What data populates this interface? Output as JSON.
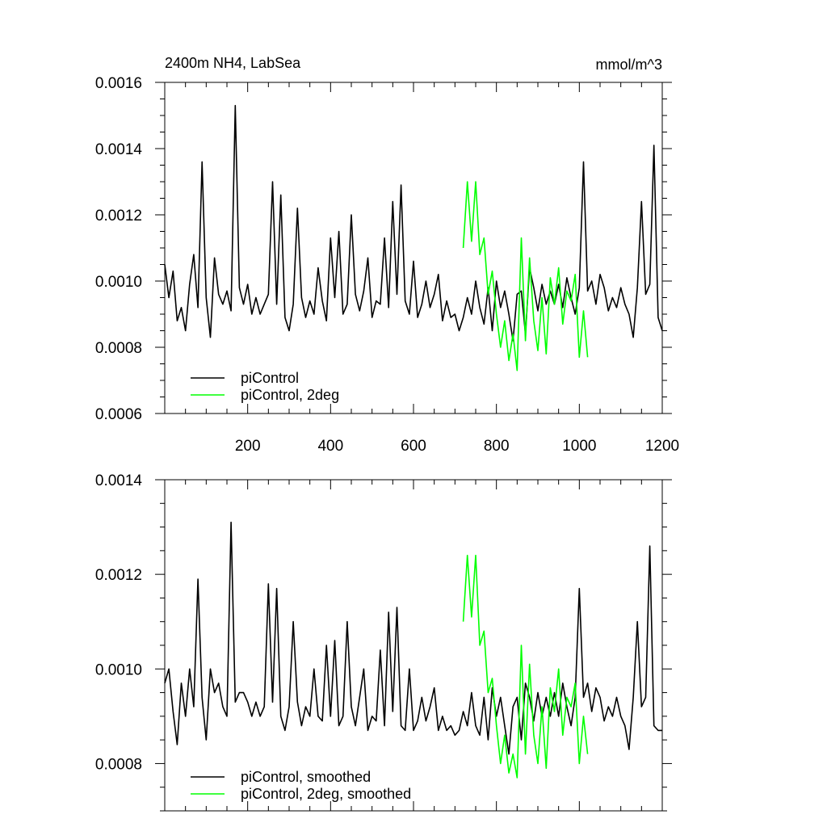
{
  "figure": {
    "title_left": "2400m NH4, LabSea",
    "title_right": "mmol/m^3"
  },
  "colors": {
    "series_black": "#000000",
    "series_green": "#00ff00"
  },
  "chart_data": [
    {
      "type": "line",
      "title": "2400m NH4, LabSea",
      "units": "mmol/m^3",
      "xlim": [
        0,
        1200
      ],
      "ylim": [
        0.0006,
        0.0016
      ],
      "x_ticks": [
        200,
        400,
        600,
        800,
        1000,
        1200
      ],
      "y_ticks": [
        "0.0006",
        "0.0008",
        "0.0010",
        "0.0012",
        "0.0014",
        "0.0016"
      ],
      "legend_position": "bottom-left",
      "grid": false,
      "series": [
        {
          "name": "piControl",
          "color": "#000000",
          "x": [
            0,
            10,
            20,
            30,
            40,
            50,
            60,
            70,
            80,
            90,
            100,
            110,
            120,
            130,
            140,
            150,
            160,
            170,
            180,
            190,
            200,
            210,
            220,
            230,
            240,
            250,
            260,
            270,
            280,
            290,
            300,
            310,
            320,
            330,
            340,
            350,
            360,
            370,
            380,
            390,
            400,
            410,
            420,
            430,
            440,
            450,
            460,
            470,
            480,
            490,
            500,
            510,
            520,
            530,
            540,
            550,
            560,
            570,
            580,
            590,
            600,
            610,
            620,
            630,
            640,
            650,
            660,
            670,
            680,
            690,
            700,
            710,
            720,
            730,
            740,
            750,
            760,
            770,
            780,
            790,
            800,
            810,
            820,
            830,
            840,
            850,
            860,
            870,
            880,
            890,
            900,
            910,
            920,
            930,
            940,
            950,
            960,
            970,
            980,
            990,
            1000,
            1010,
            1020,
            1030,
            1040,
            1050,
            1060,
            1070,
            1080,
            1090,
            1100,
            1110,
            1120,
            1130,
            1140,
            1150,
            1160,
            1170,
            1180,
            1190,
            1200
          ],
          "values": [
            0.00105,
            0.00095,
            0.00103,
            0.00088,
            0.00092,
            0.00085,
            0.00099,
            0.00108,
            0.00092,
            0.00136,
            0.00095,
            0.00083,
            0.00107,
            0.00096,
            0.00093,
            0.00097,
            0.00091,
            0.00153,
            0.00098,
            0.00093,
            0.00099,
            0.0009,
            0.00095,
            0.0009,
            0.00093,
            0.00096,
            0.0013,
            0.00093,
            0.00126,
            0.00089,
            0.00085,
            0.00093,
            0.00122,
            0.00095,
            0.00089,
            0.00094,
            0.0009,
            0.00104,
            0.00094,
            0.00088,
            0.00113,
            0.00095,
            0.00115,
            0.0009,
            0.00093,
            0.0012,
            0.00096,
            0.00091,
            0.00097,
            0.00107,
            0.00089,
            0.00094,
            0.00093,
            0.00113,
            0.00092,
            0.00124,
            0.00096,
            0.00129,
            0.00094,
            0.0009,
            0.00106,
            0.00089,
            0.00093,
            0.001,
            0.00092,
            0.00096,
            0.00102,
            0.00088,
            0.00094,
            0.00089,
            0.0009,
            0.00085,
            0.00089,
            0.00095,
            0.0009,
            0.001,
            0.00092,
            0.00087,
            0.00098,
            0.00085,
            0.001,
            0.00092,
            0.00097,
            0.0009,
            0.00082,
            0.00096,
            0.00097,
            0.00084,
            0.00104,
            0.00098,
            0.00091,
            0.00099,
            0.00093,
            0.00097,
            0.00093,
            0.00099,
            0.00092,
            0.00101,
            0.00095,
            0.0009,
            0.00098,
            0.00136,
            0.00097,
            0.001,
            0.00093,
            0.00102,
            0.00098,
            0.00091,
            0.00095,
            0.00092,
            0.00098,
            0.00093,
            0.0009,
            0.00083,
            0.00098,
            0.00124,
            0.00096,
            0.00099,
            0.00141,
            0.00089,
            0.00085
          ]
        },
        {
          "name": "piControl, 2deg",
          "color": "#00ff00",
          "x": [
            720,
            730,
            740,
            750,
            760,
            770,
            780,
            790,
            800,
            810,
            820,
            830,
            840,
            850,
            860,
            870,
            880,
            890,
            900,
            910,
            920,
            930,
            940,
            950,
            960,
            970,
            980,
            990,
            1000,
            1010,
            1020
          ],
          "values": [
            0.0011,
            0.0013,
            0.00112,
            0.0013,
            0.00108,
            0.00113,
            0.00096,
            0.00103,
            0.0009,
            0.0008,
            0.00088,
            0.00076,
            0.00084,
            0.00073,
            0.00113,
            0.00082,
            0.00107,
            0.00088,
            0.00079,
            0.00095,
            0.00078,
            0.00101,
            0.00093,
            0.00104,
            0.00087,
            0.00097,
            0.00094,
            0.00102,
            0.00077,
            0.00091,
            0.00077
          ]
        }
      ]
    },
    {
      "type": "line",
      "xlim": [
        0,
        1200
      ],
      "ylim": [
        0.0007,
        0.0014
      ],
      "x_ticks": [],
      "y_ticks": [
        "0.0008",
        "0.0010",
        "0.0012",
        "0.0014"
      ],
      "legend_position": "bottom-left",
      "grid": false,
      "series": [
        {
          "name": "piControl, smoothed",
          "color": "#000000",
          "x": [
            0,
            10,
            20,
            30,
            40,
            50,
            60,
            70,
            80,
            90,
            100,
            110,
            120,
            130,
            140,
            150,
            160,
            170,
            180,
            190,
            200,
            210,
            220,
            230,
            240,
            250,
            260,
            270,
            280,
            290,
            300,
            310,
            320,
            330,
            340,
            350,
            360,
            370,
            380,
            390,
            400,
            410,
            420,
            430,
            440,
            450,
            460,
            470,
            480,
            490,
            500,
            510,
            520,
            530,
            540,
            550,
            560,
            570,
            580,
            590,
            600,
            610,
            620,
            630,
            640,
            650,
            660,
            670,
            680,
            690,
            700,
            710,
            720,
            730,
            740,
            750,
            760,
            770,
            780,
            790,
            800,
            810,
            820,
            830,
            840,
            850,
            860,
            870,
            880,
            890,
            900,
            910,
            920,
            930,
            940,
            950,
            960,
            970,
            980,
            990,
            1000,
            1010,
            1020,
            1030,
            1040,
            1050,
            1060,
            1070,
            1080,
            1090,
            1100,
            1110,
            1120,
            1130,
            1140,
            1150,
            1160,
            1170,
            1180,
            1190,
            1200
          ],
          "values": [
            0.00097,
            0.001,
            0.00091,
            0.00084,
            0.00097,
            0.0009,
            0.001,
            0.00092,
            0.00119,
            0.00094,
            0.00085,
            0.001,
            0.00095,
            0.00097,
            0.00092,
            0.0009,
            0.00131,
            0.00093,
            0.00095,
            0.00095,
            0.00093,
            0.0009,
            0.00093,
            0.0009,
            0.00092,
            0.00118,
            0.00093,
            0.00117,
            0.0009,
            0.00087,
            0.00092,
            0.0011,
            0.00093,
            0.00088,
            0.00092,
            0.0009,
            0.001,
            0.0009,
            0.00089,
            0.00105,
            0.0009,
            0.00106,
            0.00088,
            0.0009,
            0.0011,
            0.00092,
            0.00088,
            0.00094,
            0.001,
            0.00087,
            0.0009,
            0.00089,
            0.00104,
            0.00088,
            0.00112,
            0.00091,
            0.00113,
            0.00088,
            0.00087,
            0.001,
            0.00087,
            0.00089,
            0.00094,
            0.00089,
            0.00092,
            0.00096,
            0.00087,
            0.0009,
            0.00087,
            0.00088,
            0.00086,
            0.00087,
            0.00091,
            0.00088,
            0.00095,
            0.00088,
            0.00086,
            0.00094,
            0.00085,
            0.00096,
            0.0009,
            0.00094,
            0.00088,
            0.00082,
            0.00092,
            0.00094,
            0.00085,
            0.00097,
            0.00094,
            0.00089,
            0.00095,
            0.0009,
            0.00094,
            0.0009,
            0.00095,
            0.0009,
            0.00097,
            0.00092,
            0.00088,
            0.00094,
            0.00117,
            0.00094,
            0.00097,
            0.00091,
            0.00096,
            0.00094,
            0.00089,
            0.00092,
            0.0009,
            0.00094,
            0.0009,
            0.00088,
            0.00083,
            0.00094,
            0.0011,
            0.00092,
            0.00094,
            0.00126,
            0.00088,
            0.00087,
            0.00087
          ]
        },
        {
          "name": "piControl, 2deg, smoothed",
          "color": "#00ff00",
          "x": [
            720,
            730,
            740,
            750,
            760,
            770,
            780,
            790,
            800,
            810,
            820,
            830,
            840,
            850,
            860,
            870,
            880,
            890,
            900,
            910,
            920,
            930,
            940,
            950,
            960,
            970,
            980,
            990,
            1000,
            1010,
            1020
          ],
          "values": [
            0.0011,
            0.00124,
            0.00111,
            0.00124,
            0.00105,
            0.00108,
            0.00095,
            0.00098,
            0.00088,
            0.0008,
            0.00086,
            0.00078,
            0.00082,
            0.00077,
            0.00105,
            0.00082,
            0.00101,
            0.00086,
            0.0008,
            0.00092,
            0.00079,
            0.00096,
            0.00091,
            0.001,
            0.00086,
            0.00094,
            0.00092,
            0.00097,
            0.0008,
            0.0009,
            0.00082
          ]
        }
      ]
    }
  ]
}
